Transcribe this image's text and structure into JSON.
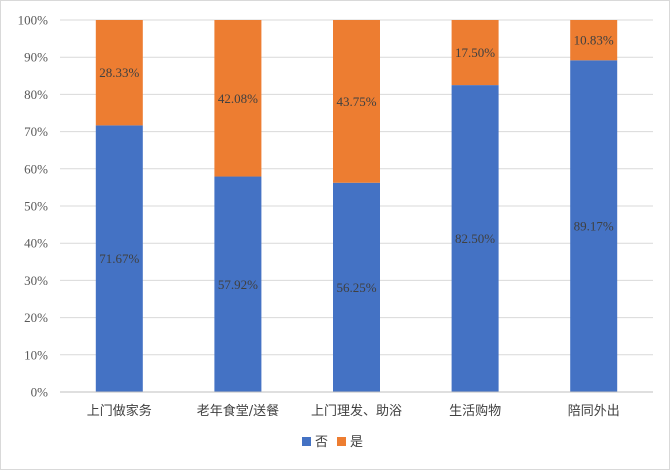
{
  "chart_data": {
    "type": "bar",
    "stacked": true,
    "percent_stacked": true,
    "categories": [
      "上门做家务",
      "老年食堂/送餐",
      "上门理发、助浴",
      "生活购物",
      "陪同外出"
    ],
    "series": [
      {
        "name": "否",
        "color": "#4472C4",
        "values": [
          71.67,
          57.92,
          56.25,
          82.5,
          89.17
        ],
        "labels": [
          "71.67%",
          "57.92%",
          "56.25%",
          "82.50%",
          "89.17%"
        ]
      },
      {
        "name": "是",
        "color": "#ED7D31",
        "values": [
          28.33,
          42.08,
          43.75,
          17.5,
          10.83
        ],
        "labels": [
          "28.33%",
          "42.08%",
          "43.75%",
          "17.50%",
          "10.83%"
        ]
      }
    ],
    "ylim": [
      0,
      100
    ],
    "yticks": [
      "0%",
      "10%",
      "20%",
      "30%",
      "40%",
      "50%",
      "60%",
      "70%",
      "80%",
      "90%",
      "100%"
    ],
    "grid": true,
    "legend": "bottom",
    "title": "",
    "xlabel": "",
    "ylabel": ""
  }
}
